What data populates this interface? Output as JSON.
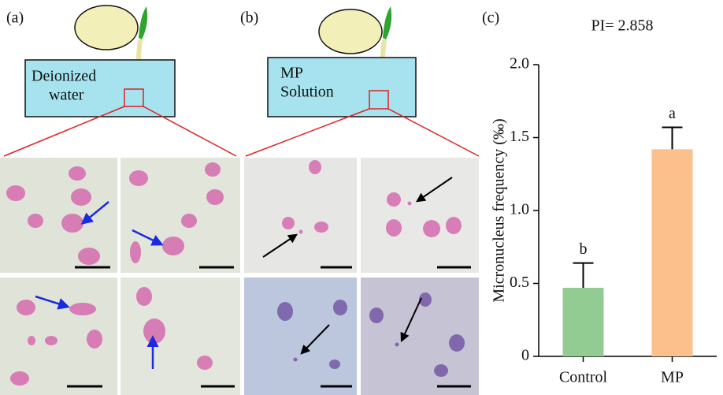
{
  "panels": {
    "a": {
      "label": "(a)",
      "beaker_text": [
        "Deionized",
        "water"
      ]
    },
    "b": {
      "label": "(b)",
      "beaker_text": [
        "MP",
        "Solution"
      ]
    },
    "c": {
      "label": "(c)"
    }
  },
  "chart_data": {
    "type": "bar",
    "title": "PI= 2.858",
    "y_label": "Micronucleus frequency (‰)",
    "categories": [
      "Control",
      "MP"
    ],
    "values": [
      0.47,
      1.42
    ],
    "errors": [
      0.17,
      0.15
    ],
    "colors": [
      "#93cc93",
      "#fcc08c"
    ],
    "annotations": [
      "b",
      "a"
    ],
    "ylim": [
      0,
      2.0
    ],
    "yticks": [
      0,
      0.5,
      {
        "value": 1.0,
        "label": "1.0"
      },
      1.5,
      {
        "value": 2.0,
        "label": "2.0"
      }
    ],
    "grid": false
  }
}
